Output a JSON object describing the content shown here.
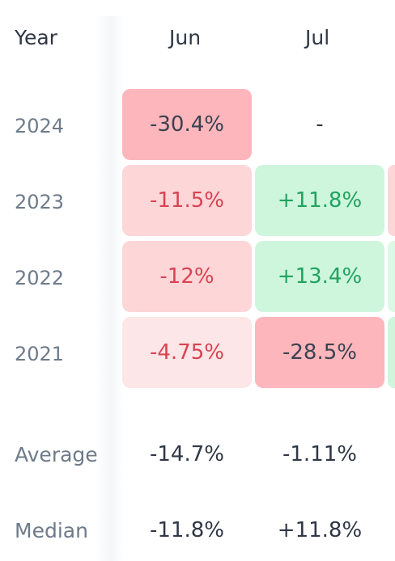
{
  "table": {
    "year_header": "Year",
    "months": [
      "Jun",
      "Jul"
    ],
    "rows": [
      {
        "year": "2024",
        "jun": "-30.4%",
        "jul": "-"
      },
      {
        "year": "2023",
        "jun": "-11.5%",
        "jul": "+11.8%"
      },
      {
        "year": "2022",
        "jun": "-12%",
        "jul": "+13.4%"
      },
      {
        "year": "2021",
        "jun": "-4.75%",
        "jul": "-28.5%"
      }
    ],
    "stats": [
      {
        "label": "Average",
        "jun": "-14.7%",
        "jul": "-1.11%"
      },
      {
        "label": "Median",
        "jun": "-11.8%",
        "jul": "+11.8%"
      }
    ]
  },
  "colors": {
    "strong_red": "#fdb6bb",
    "light_red": "#fdd6d8",
    "lighter_red": "#fde6e7",
    "green": "#cdf6dd",
    "negative_text": "#d94352",
    "positive_text": "#21a35f"
  }
}
